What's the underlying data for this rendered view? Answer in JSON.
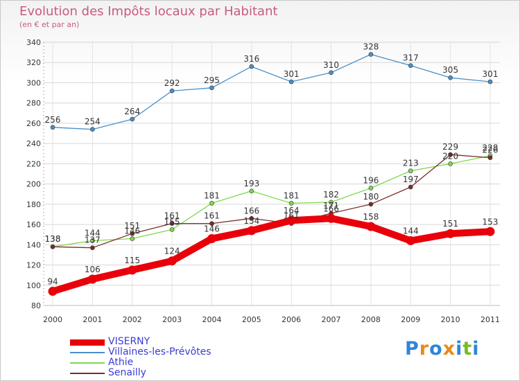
{
  "header": {
    "title": "Evolution des Impôts locaux par Habitant",
    "subtitle": "(en € et par an)"
  },
  "chart_data": {
    "type": "line",
    "title": "Evolution des Impôts locaux par Habitant",
    "subtitle": "(en € et par an)",
    "xlabel": "",
    "ylabel": "",
    "x": [
      "2000",
      "2001",
      "2002",
      "2003",
      "2004",
      "2005",
      "2006",
      "2007",
      "2008",
      "2009",
      "2010",
      "2011"
    ],
    "ylim": [
      80,
      340
    ],
    "yticks": [
      80,
      100,
      120,
      140,
      160,
      180,
      200,
      220,
      240,
      260,
      280,
      300,
      320,
      340
    ],
    "grid": true,
    "legend_position": "bottom-left",
    "series": [
      {
        "name": "VISERNY",
        "color": "#e8000b",
        "emphasis": true,
        "values": [
          94,
          106,
          115,
          124,
          146,
          154,
          164,
          166,
          158,
          144,
          151,
          153
        ]
      },
      {
        "name": "Villaines-les-Prévôtes",
        "color": "#4a90c8",
        "values": [
          256,
          254,
          264,
          292,
          295,
          316,
          301,
          310,
          328,
          317,
          305,
          301
        ]
      },
      {
        "name": "Athie",
        "color": "#7ed84a",
        "values": [
          138,
          144,
          146,
          155,
          181,
          193,
          181,
          182,
          196,
          213,
          220,
          228
        ]
      },
      {
        "name": "Senailly",
        "color": "#7a2b2b",
        "values": [
          138,
          137,
          151,
          161,
          161,
          166,
          161,
          171,
          180,
          197,
          229,
          226
        ]
      }
    ]
  },
  "legend": {
    "items": [
      {
        "label": "VISERNY",
        "color": "#e8000b"
      },
      {
        "label": "Villaines-les-Prévôtes",
        "color": "#4a90c8"
      },
      {
        "label": "Athie",
        "color": "#7ed84a"
      },
      {
        "label": "Senailly",
        "color": "#7a2b2b"
      }
    ]
  },
  "logo": {
    "text": "Proxiti",
    "letter_colors": [
      "#2e86d8",
      "#e88a1a",
      "#2e86d8",
      "#e88a1a",
      "#2e86d8",
      "#7ab82a",
      "#2e86d8"
    ]
  }
}
